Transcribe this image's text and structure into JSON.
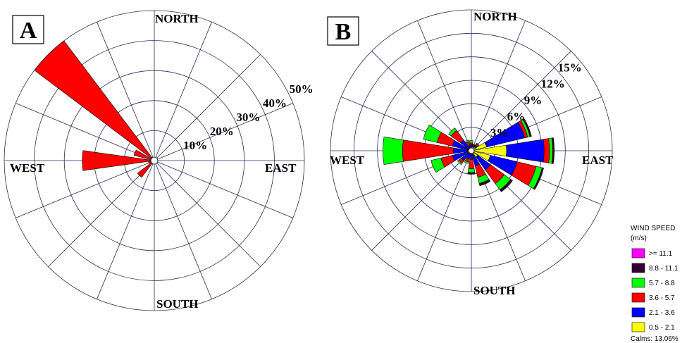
{
  "chart_data": [
    {
      "type": "wind-rose",
      "panel_label": "A",
      "direction_labels": {
        "north": "NORTH",
        "east": "EAST",
        "south": "SOUTH",
        "west": "WEST"
      },
      "ring_values": [
        10,
        20,
        30,
        40,
        50
      ],
      "ring_labels": [
        "10%",
        "20%",
        "30%",
        "40%",
        "50%"
      ],
      "rmax": 50,
      "sector_directions_deg": [
        0,
        22.5,
        45,
        67.5,
        90,
        112.5,
        135,
        157.5,
        180,
        202.5,
        225,
        247.5,
        270,
        292.5,
        315,
        337.5
      ],
      "series": [
        {
          "color": "#ff0000",
          "values": [
            0,
            0,
            0,
            0,
            0,
            0,
            0,
            0,
            0,
            0,
            7,
            2,
            24,
            7,
            50,
            0
          ]
        }
      ]
    },
    {
      "type": "wind-rose",
      "panel_label": "B",
      "direction_labels": {
        "north": "NORTH",
        "east": "EAST",
        "south": "SOUTH",
        "west": "WEST"
      },
      "ring_values": [
        3,
        6,
        9,
        12,
        15
      ],
      "ring_labels": [
        "3%",
        "6%",
        "9%",
        "12%",
        "15%"
      ],
      "rmax": 18,
      "sector_directions_deg": [
        0,
        22.5,
        45,
        67.5,
        90,
        112.5,
        135,
        157.5,
        180,
        202.5,
        225,
        247.5,
        270,
        292.5,
        315,
        337.5
      ],
      "series": [
        {
          "name": "0.5 - 2.1",
          "color": "#ffff00",
          "values": [
            0.5,
            0.5,
            0.6,
            2.0,
            4.5,
            2.5,
            1.0,
            0.5,
            0.3,
            0.3,
            0.4,
            0.5,
            0.5,
            0.3,
            0.5,
            0.3
          ]
        },
        {
          "name": "2.1 - 3.6",
          "color": "#0000ff",
          "values": [
            0.3,
            0.2,
            0.3,
            5.0,
            4.8,
            3.5,
            2.0,
            1.5,
            0.8,
            0.8,
            1.2,
            2.0,
            1.8,
            2.2,
            1.2,
            0.4
          ]
        },
        {
          "name": "3.6 - 5.7",
          "color": "#ff0000",
          "values": [
            0.2,
            0.1,
            0.2,
            0.4,
            0.7,
            2.5,
            2.2,
            1.5,
            1.2,
            0.4,
            0.4,
            1.5,
            6.5,
            2.0,
            1.5,
            0.5
          ]
        },
        {
          "name": "5.7 - 8.8",
          "color": "#00ff00",
          "values": [
            0.3,
            0.1,
            0.1,
            0.3,
            0.4,
            0.8,
            1.0,
            0.8,
            0.5,
            0.2,
            0.2,
            1.3,
            2.5,
            1.8,
            0.4,
            0.2
          ]
        },
        {
          "name": "8.8 - 11.1",
          "color": "#330033",
          "values": [
            0,
            0,
            0,
            0.2,
            0.2,
            0.2,
            0.3,
            0.3,
            0.2,
            0,
            0,
            0,
            0,
            0,
            0,
            0
          ]
        },
        {
          "name": ">= 11.1",
          "color": "#ff00ff",
          "values": [
            0,
            0,
            0,
            0,
            0,
            0,
            0,
            0,
            0,
            0,
            0,
            0,
            0,
            0,
            0,
            0
          ]
        }
      ]
    }
  ],
  "legend": {
    "title_line1": "WIND SPEED",
    "title_line2": "(m/s)",
    "items": [
      {
        "label": ">= 11.1",
        "color": "#ff00ff"
      },
      {
        "label": "8.8 - 11.1",
        "color": "#330033"
      },
      {
        "label": "5.7 -  8.8",
        "color": "#00ff00"
      },
      {
        "label": "3.6 -  5.7",
        "color": "#ff0000"
      },
      {
        "label": "2.1 -  3.6",
        "color": "#0000ff"
      },
      {
        "label": "0.5 -  2.1",
        "color": "#ffff00"
      }
    ],
    "calms": "Calms: 13.06%"
  }
}
